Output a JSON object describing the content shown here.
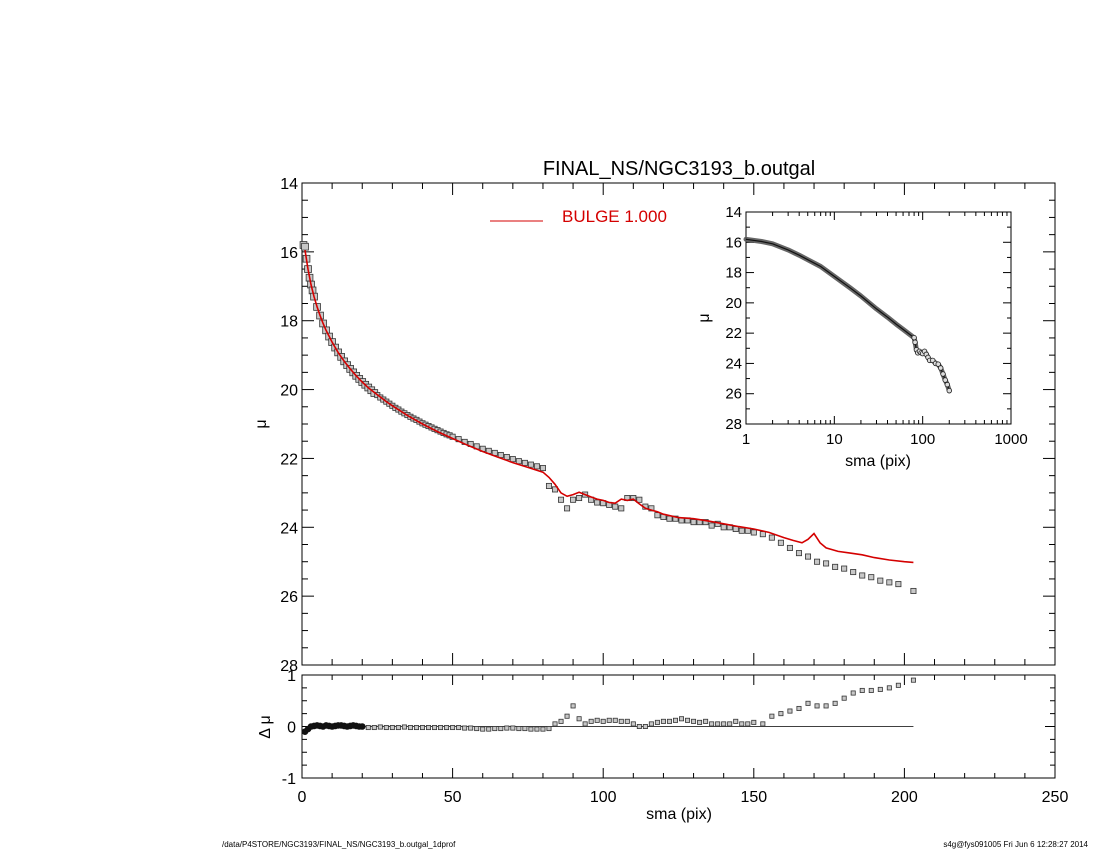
{
  "footer": {
    "left": "/data/P4STORE/NGC3193/FINAL_NS/NGC3193_b.outgal_1dprof",
    "right": "s4g@fys091005  Fri Jun  6 12:28:27 2014"
  },
  "chart_data": [
    {
      "id": "main",
      "type": "scatter",
      "title": "FINAL_NS/NGC3193_b.outgal",
      "xlabel": "",
      "ylabel": "μ",
      "xlim": [
        0,
        250
      ],
      "ylim": [
        28,
        14
      ],
      "y_inverted": true,
      "yticks": [
        "14",
        "16",
        "18",
        "20",
        "22",
        "24",
        "26",
        "28"
      ],
      "legend": {
        "label": "BULGE  1.000",
        "color": "#d40000",
        "placement": "top-center"
      },
      "series": [
        {
          "name": "BULGE  1.000",
          "kind": "line",
          "color": "#d40000",
          "x": [
            1,
            2,
            3,
            4,
            5,
            6,
            7,
            8,
            10,
            12,
            14,
            16,
            18,
            20,
            22,
            25,
            28,
            30,
            35,
            40,
            45,
            50,
            55,
            60,
            65,
            70,
            75,
            80,
            82,
            84,
            86,
            88,
            90,
            92,
            94,
            96,
            98,
            100,
            102,
            104,
            106,
            108,
            110,
            112,
            114,
            116,
            118,
            120,
            125,
            130,
            135,
            140,
            145,
            150,
            155,
            160,
            163,
            166,
            168,
            170,
            172,
            174,
            178,
            182,
            186,
            190,
            195,
            200,
            203
          ],
          "y": [
            15.95,
            16.5,
            16.95,
            17.3,
            17.6,
            17.85,
            18.08,
            18.28,
            18.62,
            18.92,
            19.18,
            19.4,
            19.6,
            19.78,
            19.95,
            20.15,
            20.35,
            20.47,
            20.75,
            21.0,
            21.22,
            21.42,
            21.62,
            21.8,
            21.96,
            22.12,
            22.26,
            22.4,
            22.55,
            22.75,
            23.0,
            23.1,
            23.05,
            22.98,
            23.05,
            23.12,
            23.18,
            23.22,
            23.28,
            23.3,
            23.18,
            23.22,
            23.18,
            23.32,
            23.45,
            23.5,
            23.55,
            23.62,
            23.72,
            23.75,
            23.82,
            23.9,
            23.98,
            24.05,
            24.15,
            24.3,
            24.38,
            24.45,
            24.35,
            24.18,
            24.45,
            24.6,
            24.7,
            24.75,
            24.8,
            24.88,
            24.95,
            25.0,
            25.02
          ]
        },
        {
          "name": "",
          "kind": "points",
          "x": [
            0.5,
            1,
            1.5,
            2,
            2.5,
            3,
            3.5,
            4,
            5,
            6,
            7,
            8,
            9,
            10,
            11,
            12,
            13,
            14,
            15,
            16,
            17,
            18,
            19,
            20,
            21,
            22,
            23,
            24,
            25,
            26,
            27,
            28,
            29,
            30,
            31,
            32,
            33,
            34,
            35,
            36,
            37,
            38,
            39,
            40,
            41,
            42,
            43,
            44,
            45,
            46,
            47,
            48,
            49,
            50,
            52,
            54,
            56,
            58,
            60,
            62,
            64,
            66,
            68,
            70,
            72,
            74,
            76,
            78,
            80,
            82,
            84,
            86,
            88,
            90,
            92,
            94,
            96,
            98,
            100,
            102,
            104,
            106,
            108,
            110,
            112,
            114,
            116,
            118,
            120,
            122,
            124,
            126,
            128,
            130,
            132,
            134,
            136,
            138,
            140,
            142,
            144,
            146,
            148,
            150,
            153,
            156,
            159,
            162,
            165,
            168,
            171,
            174,
            177,
            180,
            183,
            186,
            189,
            192,
            195,
            198,
            203
          ],
          "y": [
            15.8,
            15.85,
            16.2,
            16.5,
            16.75,
            16.95,
            17.12,
            17.3,
            17.6,
            17.85,
            18.08,
            18.28,
            18.46,
            18.62,
            18.78,
            18.92,
            19.05,
            19.18,
            19.29,
            19.4,
            19.5,
            19.6,
            19.69,
            19.78,
            19.86,
            19.94,
            20.02,
            20.1,
            20.16,
            20.23,
            20.29,
            20.35,
            20.41,
            20.47,
            20.53,
            20.58,
            20.64,
            20.69,
            20.74,
            20.79,
            20.84,
            20.88,
            20.93,
            20.98,
            21.02,
            21.06,
            21.1,
            21.14,
            21.18,
            21.22,
            21.26,
            21.3,
            21.33,
            21.37,
            21.44,
            21.52,
            21.58,
            21.65,
            21.72,
            21.78,
            21.84,
            21.9,
            21.96,
            22.02,
            22.08,
            22.13,
            22.18,
            22.23,
            22.28,
            22.8,
            22.9,
            23.2,
            23.45,
            23.2,
            23.15,
            23.05,
            23.2,
            23.28,
            23.3,
            23.35,
            23.4,
            23.45,
            23.15,
            23.15,
            23.2,
            23.4,
            23.45,
            23.65,
            23.7,
            23.75,
            23.75,
            23.8,
            23.8,
            23.85,
            23.85,
            23.85,
            23.95,
            23.9,
            24.0,
            24.0,
            24.05,
            24.1,
            24.1,
            24.15,
            24.2,
            24.3,
            24.45,
            24.6,
            24.75,
            24.85,
            25.0,
            25.05,
            25.15,
            25.2,
            25.3,
            25.4,
            25.45,
            25.55,
            25.6,
            25.65,
            25.85
          ]
        }
      ]
    },
    {
      "id": "inset",
      "type": "line",
      "xlabel": "sma (pix)",
      "ylabel": "μ",
      "xscale": "log",
      "xlim": [
        1,
        1000
      ],
      "ylim": [
        28,
        14
      ],
      "y_inverted": true,
      "xticks": [
        "1",
        "10",
        "100",
        "1000"
      ],
      "yticks": [
        "14",
        "16",
        "18",
        "20",
        "22",
        "24",
        "26",
        "28"
      ],
      "series": [
        {
          "name": "",
          "x": [
            1,
            1.5,
            2,
            3,
            4,
            5,
            7,
            10,
            15,
            20,
            30,
            40,
            50,
            60,
            70,
            80,
            82,
            85,
            88,
            92,
            96,
            100,
            105,
            110,
            115,
            120,
            130,
            140,
            150,
            160,
            170,
            180,
            190,
            200
          ],
          "y": [
            15.8,
            15.95,
            16.1,
            16.5,
            16.85,
            17.15,
            17.6,
            18.25,
            19.0,
            19.55,
            20.4,
            20.95,
            21.4,
            21.75,
            22.05,
            22.3,
            22.6,
            23.1,
            23.3,
            23.2,
            23.3,
            23.35,
            23.2,
            23.4,
            23.6,
            23.8,
            23.8,
            24.0,
            24.05,
            24.3,
            24.7,
            25.1,
            25.4,
            25.8
          ]
        }
      ]
    },
    {
      "id": "residual",
      "type": "scatter",
      "xlabel": "sma (pix)",
      "ylabel": "Δ μ",
      "xlim": [
        0,
        250
      ],
      "ylim": [
        -1,
        1
      ],
      "xticks": [
        "0",
        "50",
        "100",
        "150",
        "200",
        "250"
      ],
      "yticks": [
        "1",
        "0",
        "-1"
      ],
      "series": [
        {
          "name": "",
          "x": [
            1,
            2,
            3,
            4,
            5,
            6,
            7,
            8,
            9,
            10,
            11,
            12,
            13,
            14,
            15,
            16,
            17,
            18,
            19,
            20,
            22,
            24,
            26,
            28,
            30,
            32,
            34,
            36,
            38,
            40,
            42,
            44,
            46,
            48,
            50,
            52,
            54,
            56,
            58,
            60,
            62,
            64,
            66,
            68,
            70,
            72,
            74,
            76,
            78,
            80,
            82,
            84,
            86,
            88,
            90,
            92,
            94,
            96,
            98,
            100,
            102,
            104,
            106,
            108,
            110,
            112,
            114,
            116,
            118,
            120,
            122,
            124,
            126,
            128,
            130,
            132,
            134,
            136,
            138,
            140,
            142,
            144,
            146,
            148,
            150,
            153,
            156,
            159,
            162,
            165,
            168,
            171,
            174,
            177,
            180,
            183,
            186,
            189,
            192,
            195,
            198,
            203
          ],
          "y": [
            -0.1,
            -0.05,
            0.0,
            0.01,
            0.02,
            0.01,
            0.0,
            0.02,
            0.01,
            0.0,
            0.01,
            0.02,
            0.02,
            0.01,
            0.0,
            0.01,
            0.02,
            0.01,
            0.0,
            0.0,
            -0.02,
            -0.02,
            -0.01,
            -0.02,
            -0.02,
            -0.02,
            -0.01,
            -0.02,
            -0.02,
            -0.02,
            -0.02,
            -0.02,
            -0.02,
            -0.02,
            -0.02,
            -0.02,
            -0.03,
            -0.03,
            -0.04,
            -0.05,
            -0.05,
            -0.04,
            -0.04,
            -0.03,
            -0.03,
            -0.04,
            -0.04,
            -0.05,
            -0.05,
            -0.05,
            -0.04,
            0.05,
            0.1,
            0.2,
            0.4,
            0.15,
            0.05,
            0.1,
            0.12,
            0.1,
            0.12,
            0.12,
            0.1,
            0.1,
            0.05,
            0.0,
            0.0,
            0.05,
            0.08,
            0.1,
            0.1,
            0.12,
            0.15,
            0.12,
            0.1,
            0.08,
            0.1,
            0.05,
            0.05,
            0.05,
            0.05,
            0.1,
            0.05,
            0.05,
            0.08,
            0.05,
            0.2,
            0.25,
            0.3,
            0.35,
            0.45,
            0.4,
            0.4,
            0.45,
            0.55,
            0.65,
            0.7,
            0.7,
            0.72,
            0.75,
            0.8,
            0.9
          ]
        }
      ]
    }
  ]
}
